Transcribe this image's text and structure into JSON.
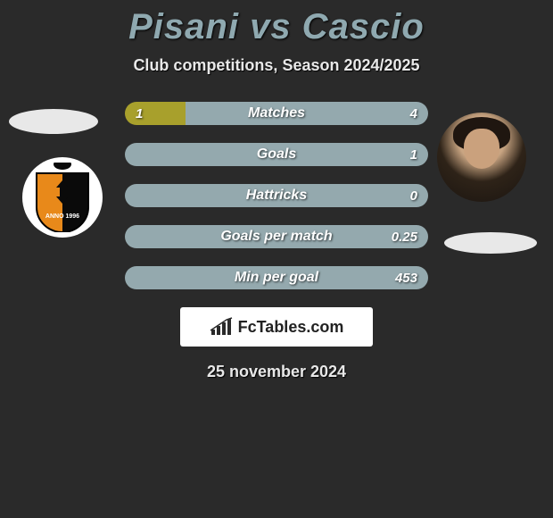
{
  "title": "Pisani vs Cascio",
  "subtitle": "Club competitions, Season 2024/2025",
  "date": "25 november 2024",
  "logo_text": "FcTables.com",
  "colors": {
    "left_bar": "#a8a02c",
    "right_bar": "#94a9ae",
    "bg": "#2a2a2a"
  },
  "bars": [
    {
      "label": "Matches",
      "left": "1",
      "right": "4",
      "left_pct": 20,
      "right_pct": 80
    },
    {
      "label": "Goals",
      "left": "",
      "right": "1",
      "left_pct": 0,
      "right_pct": 100
    },
    {
      "label": "Hattricks",
      "left": "",
      "right": "0",
      "left_pct": 0,
      "right_pct": 100
    },
    {
      "label": "Goals per match",
      "left": "",
      "right": "0.25",
      "left_pct": 0,
      "right_pct": 100
    },
    {
      "label": "Min per goal",
      "left": "",
      "right": "453",
      "left_pct": 0,
      "right_pct": 100
    }
  ],
  "crest": {
    "outer_bg": "#ffffff",
    "shield_left": "#e8891a",
    "shield_right": "#0a0a0a",
    "crown": "#0a0a0a"
  }
}
